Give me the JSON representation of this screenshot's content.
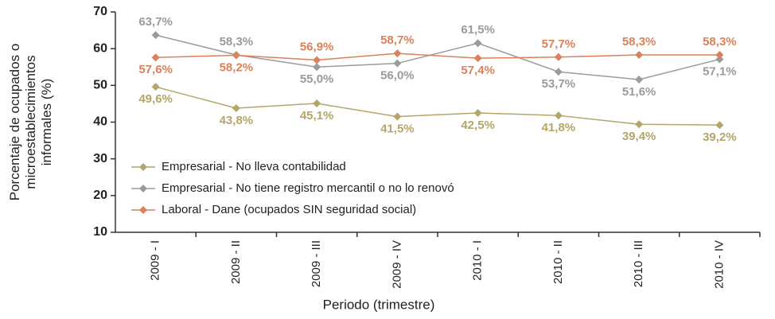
{
  "chart_data": {
    "type": "line",
    "y_label": [
      "Porcentaje de ocupados o",
      "microestablecimientos",
      "informales (%)"
    ],
    "x_label": "Periodo (trimestre)",
    "categories": [
      "2009 - I",
      "2009 - II",
      "2009 - III",
      "2009 - IV",
      "2010 - I",
      "2010 - II",
      "2010 - III",
      "2010 - IV"
    ],
    "ylim": [
      10,
      70
    ],
    "yticks": [
      10,
      20,
      30,
      40,
      50,
      60,
      70
    ],
    "series": [
      {
        "name": "Empresarial - No lleva contabilidad",
        "color": "#b3a66a",
        "values": [
          49.6,
          43.8,
          45.1,
          41.5,
          42.5,
          41.8,
          39.4,
          39.2
        ],
        "value_labels": [
          "49,6%",
          "43,8%",
          "45,1%",
          "41,5%",
          "42,5%",
          "41,8%",
          "39,4%",
          "39,2%"
        ]
      },
      {
        "name": "Empresarial - No tiene registro mercantil o no lo renovó",
        "color": "#9b9b9b",
        "values": [
          63.7,
          58.3,
          55.0,
          56.0,
          61.5,
          53.7,
          51.6,
          57.1
        ],
        "value_labels": [
          "63,7%",
          "58,3%",
          "55,0%",
          "56,0%",
          "61,5%",
          "53,7%",
          "51,6%",
          "57,1%"
        ]
      },
      {
        "name": "Laboral - Dane (ocupados SIN seguridad social)",
        "color": "#d9825b",
        "values": [
          57.6,
          58.2,
          56.9,
          58.7,
          57.4,
          57.7,
          58.3,
          58.3
        ],
        "value_labels": [
          "57,6%",
          "58,2%",
          "56,9%",
          "58,7%",
          "57,4%",
          "57,7%",
          "58,3%",
          "58,3%"
        ]
      }
    ]
  }
}
